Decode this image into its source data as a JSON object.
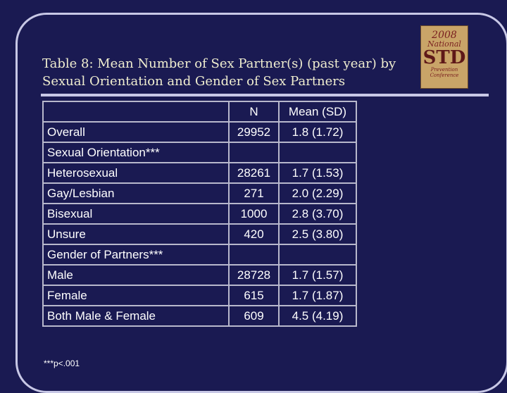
{
  "slide": {
    "title_line1": "Table 8: Mean Number of Sex Partner(s) (past year) by",
    "title_line2": "Sexual Orientation and Gender of Sex Partners",
    "footnote": "***p<.001"
  },
  "logo": {
    "year": "2008",
    "line1": "National",
    "line2": "STD",
    "line3": "Prevention",
    "line4": "Conference"
  },
  "table": {
    "header": {
      "label": "",
      "n": "N",
      "mean": "Mean (SD)"
    },
    "rows": [
      {
        "label": "Overall",
        "n": "29952",
        "mean": "1.8 (1.72)"
      },
      {
        "label": "Sexual Orientation***",
        "n": "",
        "mean": ""
      },
      {
        "label": "Heterosexual",
        "n": "28261",
        "mean": "1.7 (1.53)"
      },
      {
        "label": "Gay/Lesbian",
        "n": "271",
        "mean": "2.0 (2.29)"
      },
      {
        "label": "Bisexual",
        "n": "1000",
        "mean": "2.8 (3.70)"
      },
      {
        "label": "Unsure",
        "n": "420",
        "mean": "2.5 (3.80)"
      },
      {
        "label": "Gender of Partners***",
        "n": "",
        "mean": ""
      },
      {
        "label": "Male",
        "n": "28728",
        "mean": "1.7 (1.57)"
      },
      {
        "label": "Female",
        "n": "615",
        "mean": "1.7 (1.87)"
      },
      {
        "label": "Both Male & Female",
        "n": "609",
        "mean": "4.5 (4.19)"
      }
    ]
  },
  "colors": {
    "background": "#1a1a52",
    "frame": "#c8c8e6",
    "title": "#f0eed0",
    "logo_bg": "#c9a468"
  }
}
